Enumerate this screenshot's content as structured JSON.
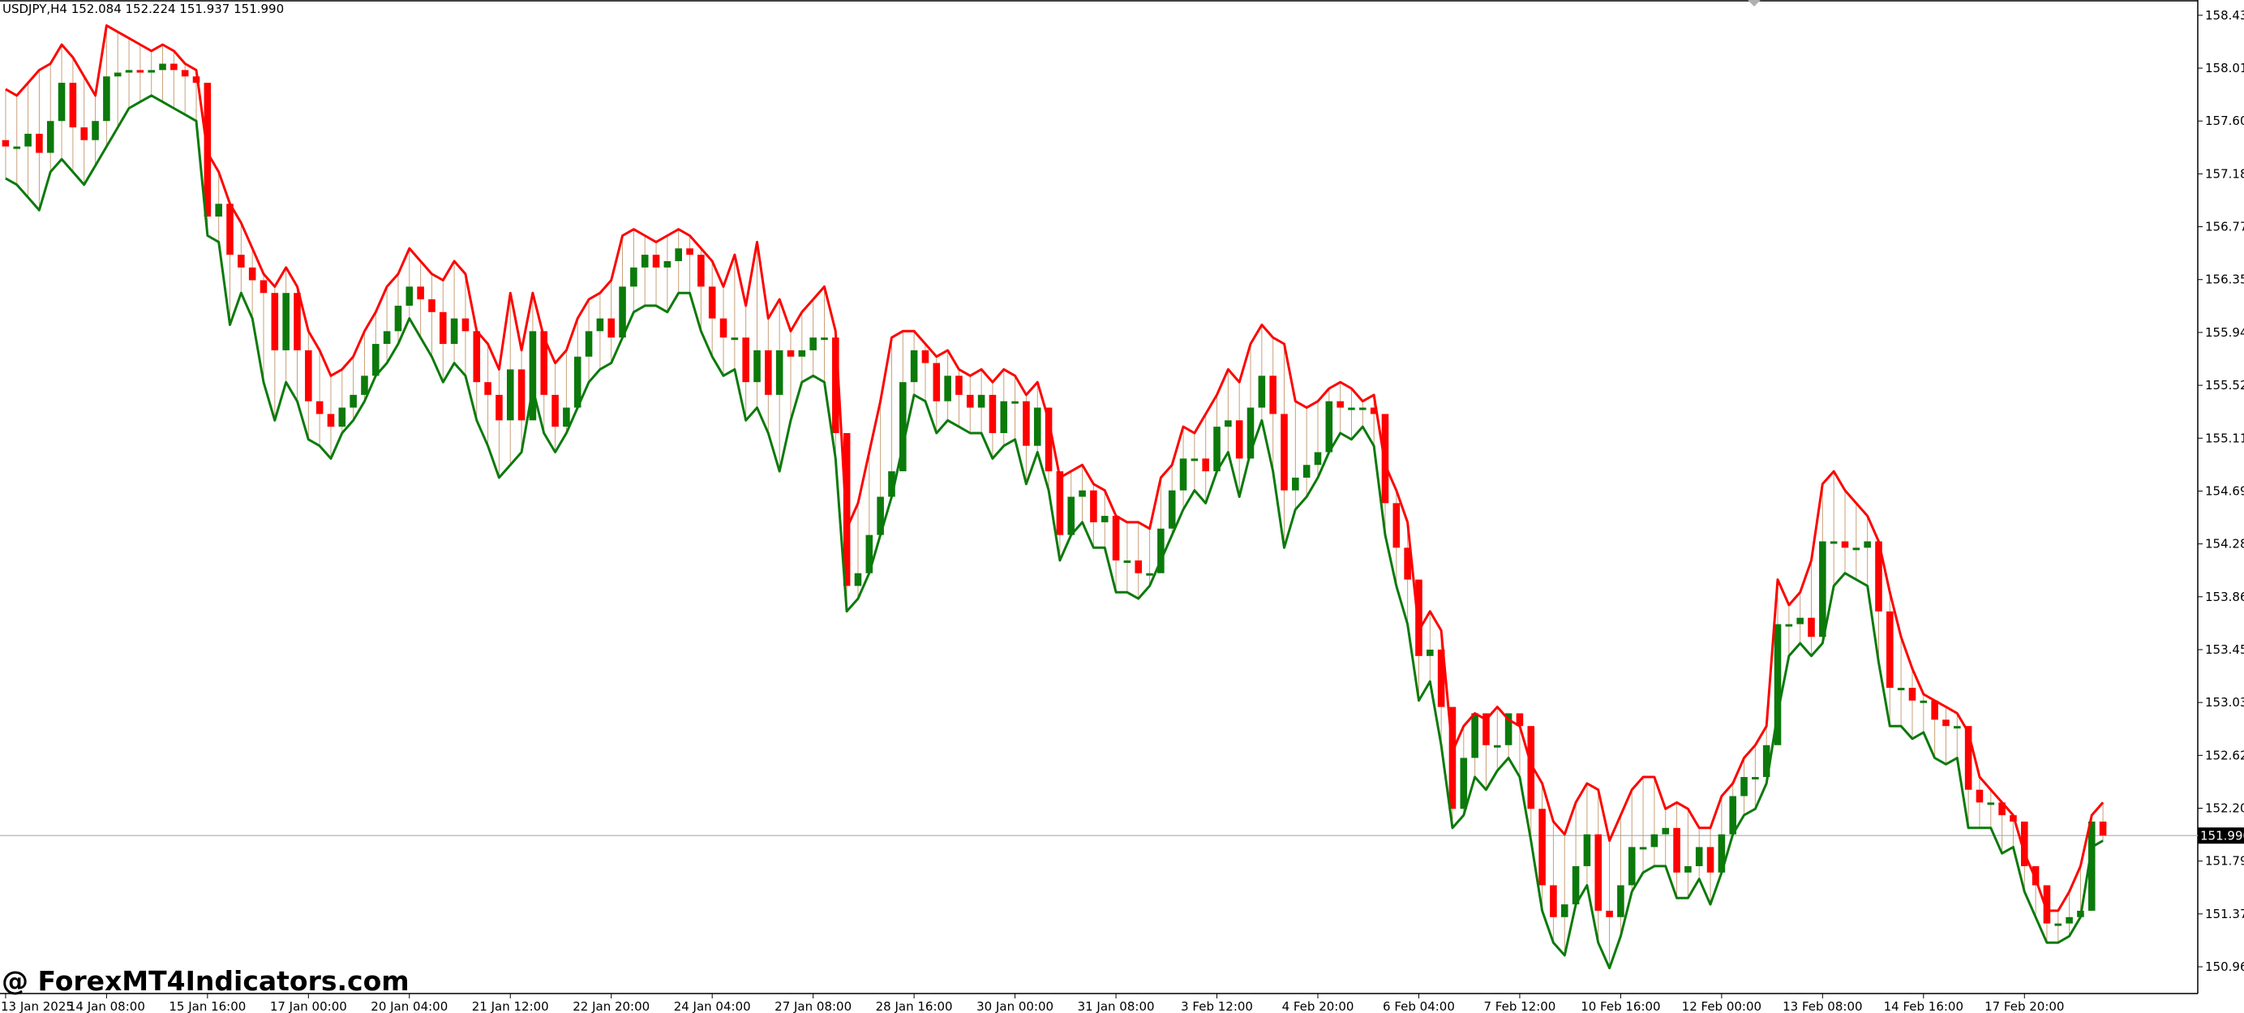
{
  "header": {
    "symbol_info": "USDJPY,H4  152.084 152.224 151.937 151.990"
  },
  "watermark": "@ ForexMT4Indicators.com",
  "current_price_label": "151.990",
  "colors": {
    "bull": "#0b7a0b",
    "bear": "#ff0000",
    "wick_line": "#c8a07a",
    "price_line": "#c0c0c0",
    "background": "#ffffff",
    "axis": "#000000"
  },
  "chart_data": {
    "type": "candlestick",
    "title": "",
    "xlabel": "",
    "ylabel": "",
    "symbol": "USDJPY",
    "timeframe": "H4",
    "ylim": [
      150.75,
      158.55
    ],
    "grid": false,
    "current_price": 151.99,
    "y_ticks": [
      "158.430",
      "158.015",
      "157.600",
      "157.185",
      "156.770",
      "156.355",
      "155.940",
      "155.525",
      "155.110",
      "154.695",
      "154.280",
      "153.865",
      "153.450",
      "153.035",
      "152.620",
      "152.205",
      "151.790",
      "151.375",
      "150.960"
    ],
    "x_ticks": [
      "13 Jan 2025",
      "14 Jan 08:00",
      "15 Jan 16:00",
      "17 Jan 00:00",
      "20 Jan 04:00",
      "21 Jan 12:00",
      "22 Jan 20:00",
      "24 Jan 04:00",
      "27 Jan 08:00",
      "28 Jan 16:00",
      "30 Jan 00:00",
      "31 Jan 08:00",
      "3 Feb 12:00",
      "4 Feb 20:00",
      "6 Feb 04:00",
      "7 Feb 12:00",
      "10 Feb 16:00",
      "12 Feb 00:00",
      "13 Feb 08:00",
      "14 Feb 16:00",
      "17 Feb 20:00"
    ],
    "candles_close": [
      157.4,
      157.4,
      157.5,
      157.35,
      157.6,
      157.9,
      157.55,
      157.45,
      157.6,
      157.95,
      157.98,
      158.0,
      157.98,
      158.0,
      158.05,
      158.0,
      157.95,
      157.9,
      156.85,
      156.95,
      156.55,
      156.45,
      156.35,
      156.25,
      155.8,
      156.25,
      155.8,
      155.4,
      155.3,
      155.2,
      155.35,
      155.45,
      155.6,
      155.85,
      155.95,
      156.15,
      156.3,
      156.2,
      156.1,
      155.85,
      156.05,
      155.95,
      155.55,
      155.45,
      155.25,
      155.65,
      155.25,
      155.95,
      155.45,
      155.2,
      155.35,
      155.75,
      155.95,
      156.05,
      155.9,
      156.3,
      156.45,
      156.55,
      156.45,
      156.5,
      156.6,
      156.55,
      156.3,
      156.05,
      155.9,
      155.9,
      155.55,
      155.8,
      155.45,
      155.8,
      155.75,
      155.8,
      155.9,
      155.9,
      155.15,
      153.95,
      154.05,
      154.35,
      154.65,
      154.85,
      155.55,
      155.8,
      155.7,
      155.4,
      155.6,
      155.45,
      155.35,
      155.45,
      155.15,
      155.4,
      155.4,
      155.05,
      155.35,
      154.85,
      154.35,
      154.65,
      154.7,
      154.45,
      154.5,
      154.15,
      154.15,
      154.05,
      154.05,
      154.4,
      154.7,
      154.95,
      154.95,
      154.85,
      155.2,
      155.25,
      154.95,
      155.35,
      155.6,
      155.3,
      154.7,
      154.8,
      154.9,
      155.0,
      155.4,
      155.35,
      155.35,
      155.35,
      155.3,
      154.6,
      154.25,
      154.0,
      153.4,
      153.45,
      153.0,
      152.2,
      152.6,
      152.95,
      152.7,
      152.7,
      152.95,
      152.85,
      152.2,
      151.6,
      151.35,
      151.45,
      151.75,
      152.0,
      151.4,
      151.35,
      151.6,
      151.9,
      151.9,
      152.0,
      152.05,
      151.7,
      151.75,
      151.9,
      151.7,
      152.0,
      152.3,
      152.45,
      152.45,
      152.7,
      153.65,
      153.65,
      153.7,
      153.55,
      154.3,
      154.3,
      154.25,
      154.25,
      154.3,
      153.75,
      153.15,
      153.15,
      153.05,
      153.05,
      152.9,
      152.85,
      152.85,
      152.35,
      152.25,
      152.25,
      152.15,
      152.1,
      151.75,
      151.6,
      151.3,
      151.3,
      151.35,
      151.4,
      152.1,
      151.99
    ],
    "series": [
      {
        "name": "",
        "role": "upper_envelope",
        "color": "#ff0000",
        "values": [
          157.85,
          157.8,
          157.9,
          158.0,
          158.05,
          158.2,
          158.1,
          157.95,
          157.8,
          158.35,
          158.3,
          158.25,
          158.2,
          158.15,
          158.2,
          158.15,
          158.05,
          158.0,
          157.35,
          157.2,
          156.95,
          156.8,
          156.6,
          156.4,
          156.3,
          156.45,
          156.3,
          155.95,
          155.8,
          155.6,
          155.65,
          155.75,
          155.95,
          156.1,
          156.3,
          156.4,
          156.6,
          156.5,
          156.4,
          156.35,
          156.5,
          156.4,
          155.95,
          155.85,
          155.65,
          156.25,
          155.8,
          156.25,
          155.9,
          155.7,
          155.8,
          156.05,
          156.2,
          156.25,
          156.35,
          156.7,
          156.75,
          156.7,
          156.65,
          156.7,
          156.75,
          156.7,
          156.6,
          156.5,
          156.3,
          156.55,
          156.15,
          156.65,
          156.05,
          156.2,
          155.95,
          156.1,
          156.2,
          156.3,
          155.95,
          154.4,
          154.6,
          155.0,
          155.4,
          155.9,
          155.95,
          155.95,
          155.85,
          155.75,
          155.8,
          155.65,
          155.6,
          155.65,
          155.55,
          155.65,
          155.6,
          155.45,
          155.55,
          155.25,
          154.8,
          154.85,
          154.9,
          154.75,
          154.7,
          154.5,
          154.45,
          154.45,
          154.4,
          154.8,
          154.9,
          155.2,
          155.15,
          155.3,
          155.45,
          155.65,
          155.55,
          155.85,
          156.0,
          155.9,
          155.85,
          155.4,
          155.35,
          155.4,
          155.5,
          155.55,
          155.5,
          155.4,
          155.45,
          154.9,
          154.7,
          154.45,
          153.6,
          153.75,
          153.6,
          152.65,
          152.85,
          152.95,
          152.9,
          153.0,
          152.9,
          152.85,
          152.55,
          152.4,
          152.1,
          152.0,
          152.25,
          152.4,
          152.35,
          151.95,
          152.15,
          152.35,
          152.45,
          152.45,
          152.2,
          152.25,
          152.2,
          152.05,
          152.05,
          152.3,
          152.4,
          152.6,
          152.7,
          152.85,
          154.0,
          153.8,
          153.9,
          154.15,
          154.75,
          154.85,
          154.7,
          154.6,
          154.5,
          154.3,
          153.9,
          153.55,
          153.3,
          153.1,
          153.05,
          153.0,
          152.95,
          152.8,
          152.45,
          152.35,
          152.25,
          152.15,
          151.85,
          151.65,
          151.4,
          151.4,
          151.55,
          151.75,
          152.15,
          152.25
        ]
      },
      {
        "name": "",
        "role": "lower_envelope",
        "color": "#0b7a0b",
        "values": [
          157.15,
          157.1,
          157.0,
          156.9,
          157.2,
          157.3,
          157.2,
          157.1,
          157.25,
          157.4,
          157.55,
          157.7,
          157.75,
          157.8,
          157.75,
          157.7,
          157.65,
          157.6,
          156.7,
          156.65,
          156.0,
          156.25,
          156.05,
          155.55,
          155.25,
          155.55,
          155.4,
          155.1,
          155.05,
          154.95,
          155.15,
          155.25,
          155.4,
          155.6,
          155.7,
          155.85,
          156.05,
          155.9,
          155.75,
          155.55,
          155.7,
          155.6,
          155.25,
          155.05,
          154.8,
          154.9,
          155.0,
          155.5,
          155.15,
          155.0,
          155.15,
          155.35,
          155.55,
          155.65,
          155.7,
          155.9,
          156.1,
          156.15,
          156.15,
          156.1,
          156.25,
          156.25,
          155.95,
          155.75,
          155.6,
          155.65,
          155.25,
          155.35,
          155.15,
          154.85,
          155.25,
          155.55,
          155.6,
          155.55,
          154.95,
          153.75,
          153.85,
          154.05,
          154.35,
          154.65,
          155.05,
          155.45,
          155.4,
          155.15,
          155.25,
          155.2,
          155.15,
          155.15,
          154.95,
          155.05,
          155.1,
          154.75,
          155.0,
          154.7,
          154.15,
          154.35,
          154.45,
          154.25,
          154.25,
          153.9,
          153.9,
          153.85,
          153.95,
          154.15,
          154.35,
          154.55,
          154.7,
          154.6,
          154.85,
          155.0,
          154.65,
          155.0,
          155.25,
          154.85,
          154.25,
          154.55,
          154.65,
          154.8,
          155.0,
          155.15,
          155.1,
          155.2,
          155.05,
          154.35,
          153.95,
          153.65,
          153.05,
          153.2,
          152.7,
          152.05,
          152.15,
          152.45,
          152.35,
          152.5,
          152.6,
          152.45,
          151.95,
          151.4,
          151.15,
          151.05,
          151.45,
          151.6,
          151.15,
          150.95,
          151.2,
          151.55,
          151.7,
          151.75,
          151.75,
          151.5,
          151.5,
          151.65,
          151.45,
          151.7,
          152.0,
          152.15,
          152.2,
          152.4,
          152.95,
          153.4,
          153.5,
          153.4,
          153.5,
          153.95,
          154.05,
          154.0,
          153.95,
          153.35,
          152.85,
          152.85,
          152.75,
          152.8,
          152.6,
          152.55,
          152.6,
          152.05,
          152.05,
          152.05,
          151.85,
          151.9,
          151.55,
          151.35,
          151.15,
          151.15,
          151.2,
          151.35,
          151.9,
          151.95
        ]
      }
    ]
  }
}
